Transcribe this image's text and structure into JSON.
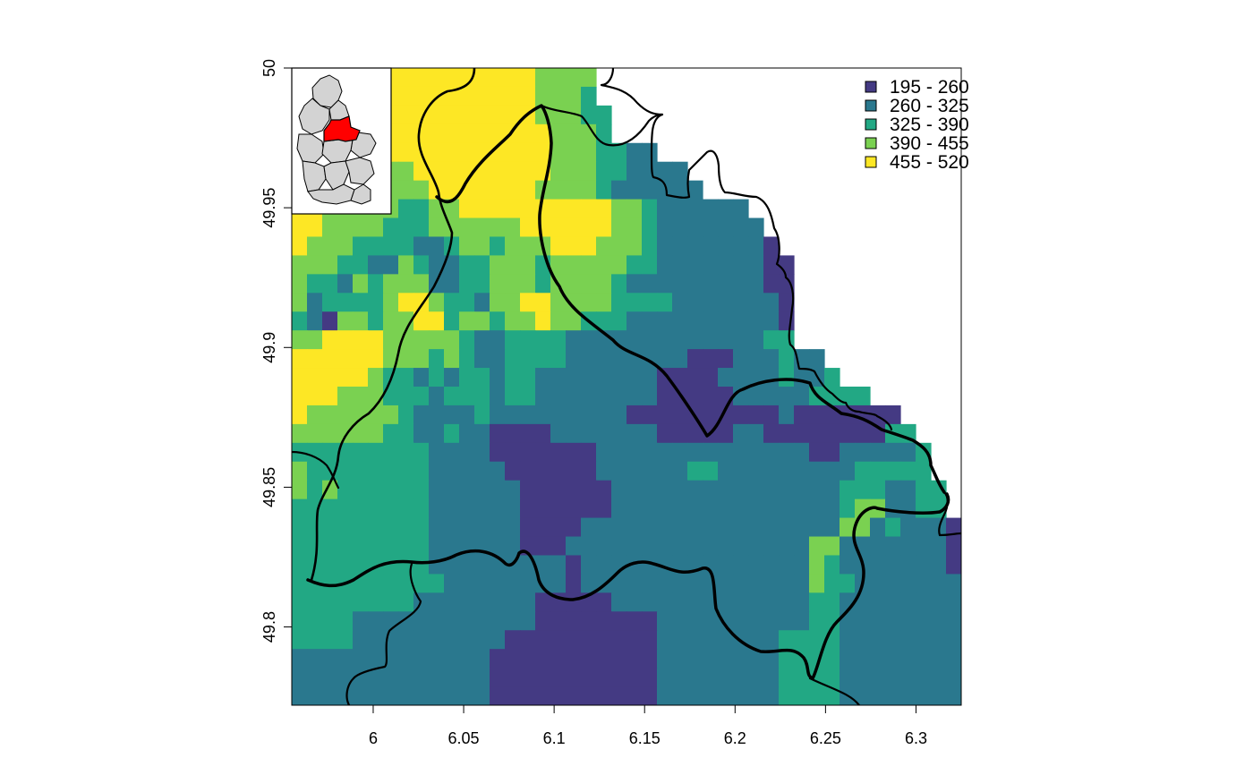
{
  "chart_data": {
    "type": "heatmap",
    "title": "",
    "xlabel": "",
    "ylabel": "",
    "xlim": [
      5.955,
      6.325
    ],
    "ylim": [
      49.772,
      50.0
    ],
    "x_ticks": [
      {
        "value": 6.0,
        "label": "6"
      },
      {
        "value": 6.05,
        "label": "6.05"
      },
      {
        "value": 6.1,
        "label": "6.1"
      },
      {
        "value": 6.15,
        "label": "6.15"
      },
      {
        "value": 6.2,
        "label": "6.2"
      },
      {
        "value": 6.25,
        "label": "6.25"
      },
      {
        "value": 6.3,
        "label": "6.3"
      }
    ],
    "y_ticks": [
      {
        "value": 49.8,
        "label": "49.8"
      },
      {
        "value": 49.85,
        "label": "49.85"
      },
      {
        "value": 49.9,
        "label": "49.9"
      },
      {
        "value": 49.95,
        "label": "49.95"
      },
      {
        "value": 50.0,
        "label": "50"
      }
    ],
    "legend": {
      "placement": "top-right",
      "classes": [
        {
          "label": "195 - 260",
          "color": "#443A83"
        },
        {
          "label": "260 - 325",
          "color": "#2A788E"
        },
        {
          "label": "325 - 390",
          "color": "#22A884"
        },
        {
          "label": "390 - 455",
          "color": "#7AD151"
        },
        {
          "label": "455 - 520",
          "color": "#FDE725"
        }
      ]
    },
    "grid": {
      "description": "elevation raster, approximate class index per cell (1=195-260 ... 5=455-520, 0=no data); rows north to south",
      "rows": [
        "45444555555555554444000000000000000000000000",
        "34444555555555554443000000000000000000000000",
        "34444555555555554443300000000000000000000000",
        "34333555555555555444300000000000000000000000",
        "34334455555555555444332200000000000000000000",
        "33333344555555555444332222000000000000000000",
        "43333344455555554444322222200000000000000000",
        "55444443344555555555544322222200000000000000",
        "55444433344444455555544322222220000000000000",
        "54443333223443444555444322222221000000000000",
        "44433224322334443444443322222221100000000000",
        "43324344422334443444432222222221100000000000",
        "42333345543324455444433332222222100000000000",
        "32144344553443445443332222222222100000000000",
        "44555544444322333322222222222223300000000000",
        "55555544434322333322222222111222322000000000",
        "55555433232332332222222211112222322300000000",
        "55544433323332332222222211111222223333000000",
        "54444443222232222222221111111111211111110000",
        "44444433223221111222222211111221111111133000",
        "33333333322221111111222222222222221122222300",
        "43333333322222111111222222332222222223333300",
        "43433333322222211111122222222222222233322330",
        "33333333322222211111122222222222222234422330",
        "33333333322222211112222222222222222244232221",
        "33333333322222211122222222222222224422222221",
        "33333333322222222212222222222222224322222221",
        "33333333332222222212222222222222224332222222",
        "33333333222222221111122222222222223322222222",
        "33332222222222221111111122222222223322222222",
        "33332222222222111111111122222222333322222222",
        "22222222222221111111111122222222333322222222",
        "22222222222221111111111122222222333322222222",
        "22222222222221111111111122222222333322222222"
      ]
    },
    "inset": {
      "description": "overview map of Luxembourg cantons with selected canton highlighted",
      "highlight_color": "#ff0000",
      "base_color": "#d3d3d3"
    }
  },
  "colors": {
    "no_data": "#ffffff",
    "boundary": "#000000",
    "frame": "#000000"
  }
}
